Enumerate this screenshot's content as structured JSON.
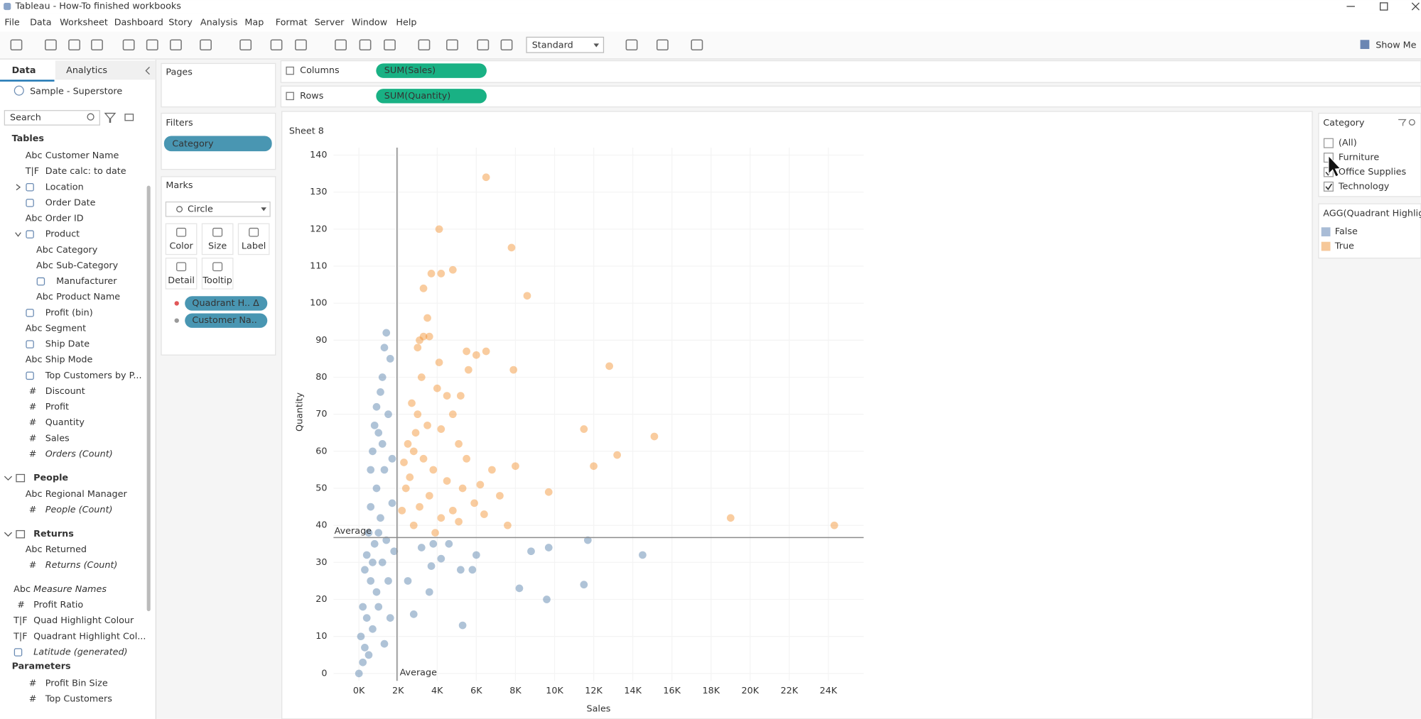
{
  "window_title": "Tableau - How-To finished workbooks",
  "menu": [
    "File",
    "Data",
    "Worksheet",
    "Dashboard",
    "Story",
    "Analysis",
    "Map",
    "Format",
    "Server",
    "Window",
    "Help"
  ],
  "toolbar": {
    "view_mode": "Standard",
    "show_me": "Show Me"
  },
  "side_panel": {
    "tabs": [
      "Data",
      "Analytics"
    ],
    "data_source": "Sample - Superstore",
    "search_placeholder": "Search",
    "sections": [
      {
        "header": "Tables",
        "items": [
          {
            "name": "Customer Name",
            "icon": "Abc"
          },
          {
            "name": "Date calc: to date",
            "icon": "T|F"
          },
          {
            "name": "Location",
            "expanded": false
          },
          {
            "name": "Order Date"
          },
          {
            "name": "Order ID",
            "icon": "Abc"
          },
          {
            "name": "Product",
            "expanded": true
          },
          {
            "name": "Category",
            "icon": "Abc",
            "indent": true
          },
          {
            "name": "Sub-Category",
            "icon": "Abc",
            "indent": true
          },
          {
            "name": "Manufacturer",
            "indent": true
          },
          {
            "name": "Product Name",
            "icon": "Abc",
            "indent": true
          },
          {
            "name": "Profit (bin)"
          },
          {
            "name": "Segment",
            "icon": "Abc"
          },
          {
            "name": "Ship Date"
          },
          {
            "name": "Ship Mode",
            "icon": "Abc"
          },
          {
            "name": "Top Customers by P..."
          },
          {
            "name": "Discount",
            "icon": "#"
          },
          {
            "name": "Profit",
            "icon": "#"
          },
          {
            "name": "Quantity",
            "icon": "#"
          },
          {
            "name": "Sales",
            "icon": "#"
          },
          {
            "name": "Orders (Count)",
            "icon": "#",
            "italic": true
          }
        ]
      },
      {
        "header": "People",
        "items": [
          {
            "name": "Regional Manager",
            "icon": "Abc"
          },
          {
            "name": "People (Count)",
            "icon": "#",
            "italic": true
          }
        ]
      },
      {
        "header": "Returns",
        "items": [
          {
            "name": "Returned",
            "icon": "Abc"
          },
          {
            "name": "Returns (Count)",
            "icon": "#",
            "italic": true
          }
        ]
      },
      {
        "items": [
          {
            "name": "Measure Names",
            "icon": "Abc",
            "italic": true
          },
          {
            "name": "Profit Ratio",
            "icon": "#"
          },
          {
            "name": "Quad Highlight Colour",
            "icon": "T|F"
          },
          {
            "name": "Quadrant Highlight Col...",
            "icon": "T|F"
          },
          {
            "name": "Latitude (generated)",
            "italic": true
          }
        ]
      },
      {
        "header": "Parameters",
        "items": [
          {
            "name": "Profit Bin Size",
            "icon": "#"
          },
          {
            "name": "Top Customers",
            "icon": "#"
          }
        ]
      }
    ]
  },
  "shelves": {
    "pages": "Pages",
    "columns": {
      "label": "Columns",
      "pill": "SUM(Sales)"
    },
    "rows": {
      "label": "Rows",
      "pill": "SUM(Quantity)"
    },
    "filters": {
      "label": "Filters",
      "pill": "Category"
    },
    "marks": {
      "label": "Marks",
      "mark_type": "Circle",
      "buttons": [
        "Color",
        "Size",
        "Label",
        "Detail",
        "Tooltip"
      ],
      "pills": [
        "Quadrant H..  Δ",
        "Customer Na.."
      ]
    }
  },
  "filter_card": {
    "title": "Category",
    "items": [
      {
        "label": "(All)",
        "checked": false
      },
      {
        "label": "Furniture",
        "checked": false
      },
      {
        "label": "Office Supplies",
        "checked": true
      },
      {
        "label": "Technology",
        "checked": true
      }
    ]
  },
  "chart_data": {
    "type": "scatter",
    "title": "Sheet 8",
    "x_label": "Sales",
    "y_label": "Quantity",
    "legend_title": "AGG(Quadrant Highligh",
    "xlim": [
      -1300,
      25800
    ],
    "ylim": [
      -2,
      142
    ],
    "xticks": [
      {
        "value": 0,
        "label": "0K"
      },
      {
        "value": 2000,
        "label": "2K"
      },
      {
        "value": 4000,
        "label": "4K"
      },
      {
        "value": 6000,
        "label": "6K"
      },
      {
        "value": 8000,
        "label": "8K"
      },
      {
        "value": 10000,
        "label": "10K"
      },
      {
        "value": 12000,
        "label": "12K"
      },
      {
        "value": 14000,
        "label": "14K"
      },
      {
        "value": 16000,
        "label": "16K"
      },
      {
        "value": 18000,
        "label": "18K"
      },
      {
        "value": 20000,
        "label": "20K"
      },
      {
        "value": 22000,
        "label": "22K"
      },
      {
        "value": 24000,
        "label": "24K"
      }
    ],
    "yticks": [
      0,
      10,
      20,
      30,
      40,
      50,
      60,
      70,
      80,
      90,
      100,
      110,
      120,
      130,
      140
    ],
    "grid": true,
    "reference_lines": [
      {
        "axis": "x",
        "value": 1946,
        "label": "Average"
      },
      {
        "axis": "y",
        "value": 36.7,
        "label": "Average"
      }
    ],
    "series": [
      {
        "name": "False",
        "color": "#4e79a7",
        "legend_color": "#a9bcd6",
        "x": [
          9600,
          8200,
          11500,
          14500,
          11700,
          9700,
          8800,
          6000,
          5800,
          5300,
          5200,
          4200,
          3600,
          3700,
          2800,
          2500,
          3200,
          4600,
          3800,
          1400,
          1300,
          1200,
          1100,
          800,
          1000,
          1500,
          700,
          1300,
          900,
          600,
          1100,
          1700,
          500,
          800,
          1200,
          300,
          600,
          900,
          200,
          400,
          700,
          100,
          300,
          500,
          0,
          200,
          1000,
          1500,
          1800,
          1600,
          1300,
          400,
          700,
          1000,
          1400,
          600,
          1200,
          1700,
          900,
          1600
        ],
        "values": [
          20,
          23,
          24,
          32,
          36,
          34,
          33,
          32,
          28,
          13,
          28,
          31,
          22,
          29,
          16,
          25,
          34,
          35,
          35,
          92,
          88,
          80,
          76,
          67,
          65,
          70,
          60,
          55,
          50,
          45,
          42,
          46,
          38,
          35,
          30,
          28,
          25,
          22,
          18,
          15,
          12,
          10,
          7,
          5,
          0,
          3,
          18,
          25,
          33,
          15,
          8,
          32,
          30,
          38,
          36,
          55,
          62,
          58,
          72,
          85
        ]
      },
      {
        "name": "True",
        "color": "#f28e2b",
        "legend_color": "#f6c899",
        "x": [
          6500,
          4100,
          7800,
          8600,
          12800,
          15100,
          11500,
          13200,
          19000,
          24300,
          12000,
          9700,
          8000,
          7600,
          6500,
          6000,
          4200,
          3700,
          4800,
          3300,
          3600,
          3300,
          3100,
          3500,
          4100,
          3000,
          5500,
          5600,
          7900,
          4000,
          4500,
          5200,
          3200,
          2700,
          3000,
          3500,
          4200,
          4800,
          5100,
          2500,
          2800,
          3300,
          3800,
          4500,
          5500,
          6200,
          6800,
          7200,
          5900,
          2400,
          3100,
          3600,
          4200,
          5100,
          2200,
          2800,
          6400,
          3900,
          2600,
          4800,
          2300,
          5300,
          2900
        ],
        "values": [
          134,
          120,
          115,
          102,
          83,
          64,
          66,
          59,
          42,
          40,
          56,
          49,
          56,
          40,
          87,
          86,
          108,
          108,
          109,
          104,
          91,
          91,
          90,
          96,
          84,
          88,
          87,
          82,
          82,
          77,
          75,
          75,
          80,
          73,
          70,
          67,
          66,
          70,
          62,
          62,
          60,
          58,
          55,
          52,
          58,
          51,
          55,
          48,
          46,
          50,
          45,
          48,
          42,
          41,
          44,
          40,
          43,
          38,
          53,
          44,
          57,
          50,
          65
        ]
      }
    ]
  }
}
